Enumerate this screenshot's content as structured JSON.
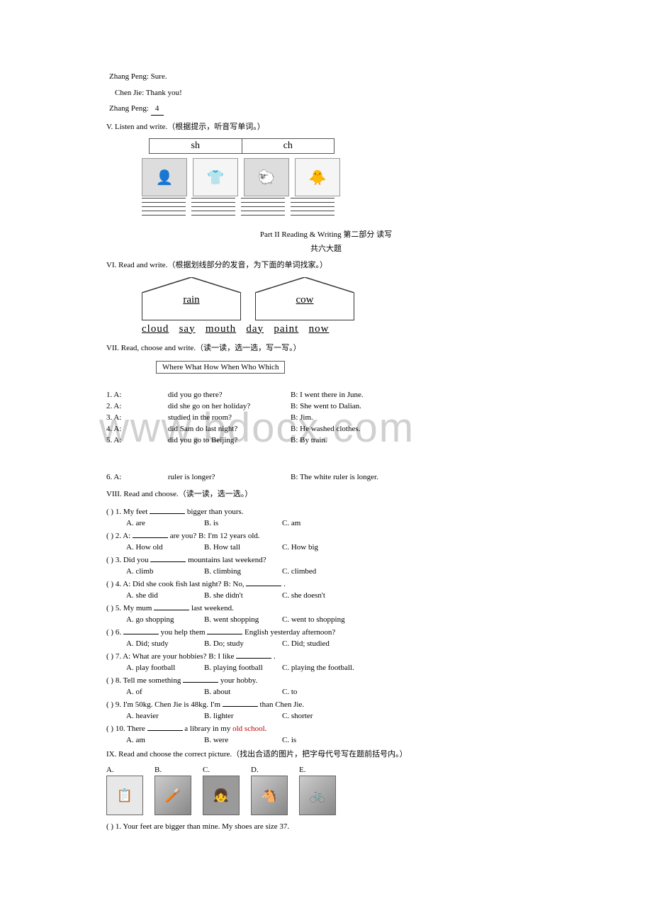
{
  "dialogue": {
    "zp1": "Zhang Peng: Sure.",
    "cj1": "Chen Jie: Thank you!",
    "zp2_label": "Zhang Peng:",
    "zp2_blank": "4"
  },
  "sectionV": {
    "title": "V. Listen and write.（根据提示，听音写单词。）",
    "h1": "sh",
    "h2": "ch"
  },
  "part2": {
    "title": "Part II  Reading & Writing   第二部分  读写",
    "subtitle": "共六大题"
  },
  "sectionVI": {
    "title": "VI. Read and write.（根据划线部分的发音，为下面的单词找家。）",
    "house1": "rain",
    "house2": "cow",
    "words": [
      "cloud",
      "say",
      "mouth",
      "day",
      "paint",
      "now"
    ]
  },
  "sectionVII": {
    "title": "VII. Read, choose and write.（读一读，选一选，写一写。）",
    "modals": "Where   What   How   When   Who   Which",
    "items": [
      {
        "n": "1",
        "left": "did you go there?",
        "right": "B: I went there in June."
      },
      {
        "n": "2",
        "left": "did she go on her holiday?",
        "right": "B: She went to Dalian."
      },
      {
        "n": "3",
        "left": "studied in the room?",
        "right": "B: Jim."
      },
      {
        "n": "4",
        "left": "did Sam do last night?",
        "right": "B: He washed clothes."
      },
      {
        "n": "5",
        "left": "did you go to Beijing?",
        "right": "B: By train."
      },
      {
        "n": "6",
        "left": "ruler is longer?",
        "right": "B: The white ruler is longer."
      }
    ]
  },
  "sectionVIII": {
    "title": "VIII. Read and choose.（读一读，选一选。）",
    "items": [
      {
        "n": "1",
        "stem_pre": "My feet",
        "stem_post": "bigger than yours.",
        "a": "A. are",
        "b": "B. is",
        "c": "C. am"
      },
      {
        "n": "2",
        "stem_pre": "A:",
        "stem_mid": "are you?",
        "stem_b": "B: I'm 12 years old.",
        "a": "A. How old",
        "b": "B. How tall",
        "c": "C. How big"
      },
      {
        "n": "3",
        "stem_pre": "Did you",
        "stem_post": "mountains last weekend?",
        "a": "A. climb",
        "b": "B. climbing",
        "c": "C. climbed"
      },
      {
        "n": "4",
        "stem_pre": "A: Did she cook fish last night?      B: No,",
        "stem_post": ".",
        "a": "A. she did",
        "b": "B. she didn't",
        "c": "C. she doesn't"
      },
      {
        "n": "5",
        "stem_pre": "My mum",
        "stem_post": "last weekend.",
        "a": "A. go shopping",
        "b": "B. went shopping",
        "c": "C. went to shopping"
      },
      {
        "n": "6",
        "stem_pre": "",
        "stem_mid": "you help them",
        "stem_post": "English yesterday afternoon?",
        "a": "A. Did; study",
        "b": "B. Do; study",
        "c": "C. Did; studied"
      },
      {
        "n": "7",
        "stem_pre": "A: What are your hobbies?      B: I like",
        "stem_post": ".",
        "a": "A. play football",
        "b": "B. playing football",
        "c": "C. playing the football."
      },
      {
        "n": "8",
        "stem_pre": "Tell me something",
        "stem_post": "your hobby.",
        "a": "A. of",
        "b": "B. about",
        "c": "C. to"
      },
      {
        "n": "9",
        "stem_pre": "I'm 50kg. Chen Jie is 48kg. I'm",
        "stem_post": "than Chen Jie.",
        "a": "A. heavier",
        "b": "B. lighter",
        "c": "C. shorter"
      },
      {
        "n": "10",
        "stem_pre": "There",
        "stem_mid": "a library in my",
        "stem_red": "old school",
        "stem_post": ".",
        "a": "A. am",
        "b": "B. were",
        "c": "C. is"
      }
    ]
  },
  "sectionIX": {
    "title": "IX. Read and choose the correct picture.（找出合适的图片，把字母代号写在题前括号内。）",
    "labels": [
      "A.",
      "B.",
      "C.",
      "D.",
      "E."
    ],
    "item1": "(    ) 1. Your feet are bigger than mine. My shoes are size 37."
  }
}
